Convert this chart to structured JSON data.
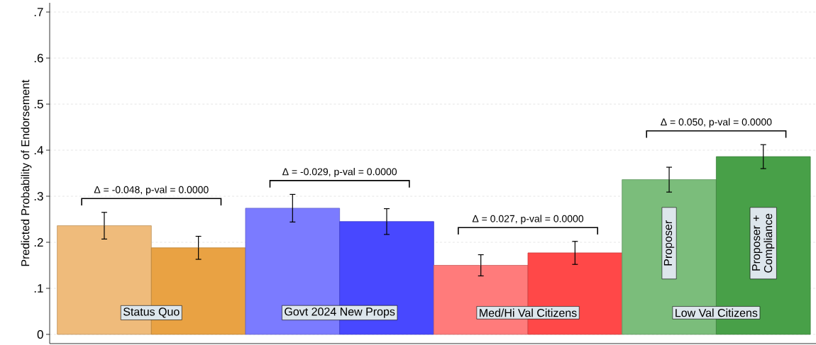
{
  "chart_data": {
    "type": "bar",
    "ylabel": "Predicted Probability of Endorsement",
    "categories": [
      "Status Quo",
      "Govt 2024 New Props",
      "Med/Hi Val Citizens",
      "Low Val Citizens"
    ],
    "series": [
      {
        "name": "Proposer",
        "colors": [
          "#efbb7b",
          "#7b7bff",
          "#ff7b7b",
          "#7bbd7b"
        ],
        "values": [
          0.236,
          0.274,
          0.15,
          0.336
        ],
        "errors": [
          0.029,
          0.03,
          0.023,
          0.027
        ]
      },
      {
        "name": "Proposer + Compliance",
        "colors": [
          "#e9a243",
          "#4848ff",
          "#ff4848",
          "#48a048"
        ],
        "values": [
          0.188,
          0.245,
          0.177,
          0.386
        ],
        "errors": [
          0.025,
          0.028,
          0.025,
          0.026
        ]
      }
    ],
    "ylim": [
      -0.02,
      0.72
    ],
    "yticks": [
      0,
      {
        "value": 0.1,
        "label": ".1"
      },
      {
        "value": 0.2,
        "label": ".2"
      },
      {
        "value": 0.3,
        "label": ".3"
      },
      {
        "value": 0.4,
        "label": ".4"
      },
      {
        "value": 0.5,
        "label": ".5"
      },
      {
        "value": 0.6,
        "label": ".6"
      },
      {
        "value": 0.7,
        "label": ".7"
      }
    ],
    "grid": "y",
    "annotations": [
      "Δ = -0.048, p-val = 0.0000",
      "Δ = -0.029, p-val = 0.0000",
      "Δ = 0.027, p-val = 0.0000",
      "Δ = 0.050, p-val = 0.0000"
    ]
  }
}
